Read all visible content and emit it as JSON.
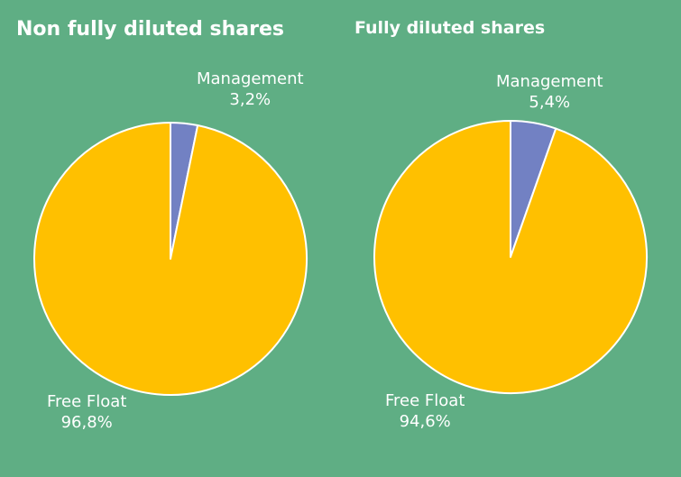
{
  "chart_data": [
    {
      "type": "pie",
      "title": "Non fully diluted shares",
      "slices": [
        {
          "label": "Management",
          "value": 3.2,
          "display": "3,2%",
          "color": "#7281c3"
        },
        {
          "label": "Free Float",
          "value": 96.8,
          "display": "96,8%",
          "color": "#ffc000"
        }
      ],
      "start_angle_deg": 0,
      "direction": "clockwise"
    },
    {
      "type": "pie",
      "title": "Fully diluted shares",
      "slices": [
        {
          "label": "Management",
          "value": 5.4,
          "display": "5,4%",
          "color": "#7281c3"
        },
        {
          "label": "Free Float",
          "value": 94.6,
          "display": "94,6%",
          "color": "#ffc000"
        }
      ],
      "start_angle_deg": 0,
      "direction": "clockwise"
    }
  ],
  "colors": {
    "background": "#5fae84",
    "text": "#ffffff",
    "slice_border": "#ffffff"
  }
}
